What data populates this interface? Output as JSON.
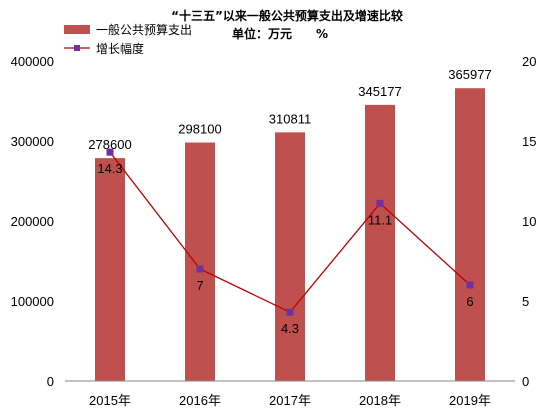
{
  "chart_data": {
    "type": "bar",
    "title": "“十三五”以来一般公共预算支出及增速比较",
    "subtitle": "单位：万元　　%",
    "categories": [
      "2015年",
      "2016年",
      "2017年",
      "2018年",
      "2019年"
    ],
    "series": [
      {
        "name": "一般公共预算支出",
        "type": "bar",
        "axis": "left",
        "values": [
          278600,
          298100,
          310811,
          345177,
          365977
        ],
        "labels": [
          "278600",
          "298100",
          "310811",
          "345177",
          "365977"
        ],
        "color": "#c0504d"
      },
      {
        "name": "增长幅度",
        "type": "line",
        "axis": "right",
        "values": [
          14.3,
          7,
          4.3,
          11.1,
          6
        ],
        "labels": [
          "14.3",
          "7",
          "4.3",
          "11.1",
          "6"
        ],
        "color": "#c00000",
        "marker_color": "#7030a0"
      }
    ],
    "y_left": {
      "min": 0,
      "max": 400000,
      "ticks": [
        "0",
        "100000",
        "200000",
        "300000",
        "400000"
      ]
    },
    "y_right": {
      "min": 0,
      "max": 20,
      "ticks": [
        "0",
        "5",
        "10",
        "15",
        "20"
      ]
    },
    "grid": false,
    "legend": "top-left"
  }
}
